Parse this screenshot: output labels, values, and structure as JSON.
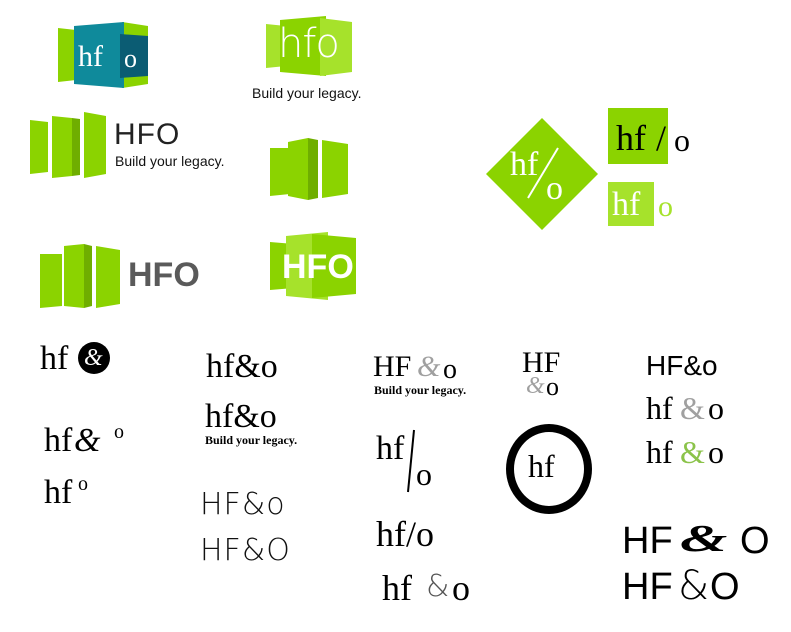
{
  "colors": {
    "lime": "#8bd300",
    "lime_light": "#a6e22b",
    "lime_dark": "#6fae00",
    "teal": "#0f8a9b",
    "teal_dark": "#0b5c73",
    "gray": "#5a5a5a",
    "light_gray": "#a0a0a0",
    "green_amp": "#8bc34a",
    "black": "#000000"
  },
  "logos": {
    "teal_logo": {
      "hf": "hf",
      "o": "o"
    },
    "lime_stack": {
      "text": "hfo",
      "tagline": "Build your legacy."
    },
    "panels_hfo_tag": {
      "text": "HFO",
      "tagline": "Build your legacy."
    },
    "diamond": {
      "hf": "hf",
      "slash": "/",
      "o": "o"
    },
    "boxed_slash": {
      "hf": "hf",
      "slash": "/",
      "o": "o"
    },
    "boxed_split": {
      "hf": "hf",
      "o": "o"
    },
    "panels_hfo_gray": {
      "text": "HFO"
    },
    "panels_hfo_white": {
      "text": "HFO"
    }
  },
  "type_studies": {
    "hf_circle_amp": {
      "hf": "hf",
      "amp": "&"
    },
    "hf_amp_o_1": {
      "text": "hf&o"
    },
    "hf_amp_o_tag": {
      "text": "hf&o",
      "tagline": "Build your legacy."
    },
    "HF_amp_o_tag": {
      "HF": "HF",
      "amp": "&",
      "o": "o",
      "tagline": "Build your legacy."
    },
    "HF_stack": {
      "HF": "HF",
      "amp": "&",
      "o": "o"
    },
    "HF_amp_o_sans": {
      "text": "HF&o"
    },
    "hf_amp_o_gray": {
      "hf": "hf",
      "amp": "&",
      "o": "o"
    },
    "hf_amp_o_green": {
      "hf": "hf",
      "amp": "&",
      "o": "o"
    },
    "hf_sup_amp_o": {
      "hf": "hf",
      "amp": "&",
      "o": "o"
    },
    "hf_sup_o": {
      "hf": "hf",
      "o": "o"
    },
    "HF_thin_1": {
      "text": "HF&o"
    },
    "HF_thin_2": {
      "text": "HF&O"
    },
    "hf_slash_big": {
      "hf": "hf",
      "slash": "/",
      "o": "o"
    },
    "hf_slash_inline": {
      "text": "hf/o"
    },
    "hf_amp_spaced": {
      "hf": "hf",
      "amp": "&",
      "o": "o"
    },
    "big_o_hf": {
      "O": "O",
      "hf": "hf"
    },
    "HF_script_amp_O": {
      "HF": "HF",
      "amp": "&",
      "O": "O"
    },
    "HF_amp_O": {
      "HF": "HF",
      "amp": "&",
      "O": "O"
    }
  }
}
